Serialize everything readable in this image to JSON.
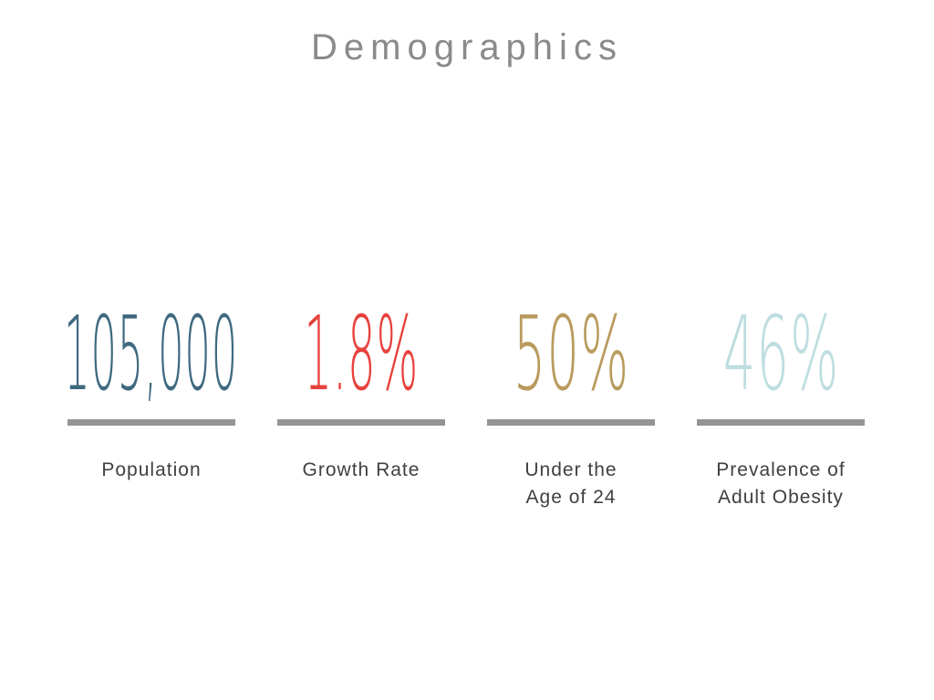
{
  "title": "Demographics",
  "divider_color": "#949494",
  "title_color": "#8a8a8a",
  "label_color": "#404040",
  "stats": [
    {
      "value": "105,000",
      "label": "Population",
      "color": "#3f6a80"
    },
    {
      "value": "1.8%",
      "label": "Growth Rate",
      "color": "#e8423d"
    },
    {
      "value": "50%",
      "label": "Under the\nAge of 24",
      "color": "#b99b5e"
    },
    {
      "value": "46%",
      "label": "Prevalence of\nAdult Obesity",
      "color": "#bedde1"
    }
  ],
  "chart_data": {
    "type": "table",
    "title": "Demographics",
    "categories": [
      "Population",
      "Growth Rate",
      "Under the Age of 24",
      "Prevalence of Adult Obesity"
    ],
    "values": [
      "105,000",
      "1.8%",
      "50%",
      "46%"
    ],
    "numeric_values": [
      105000,
      1.8,
      50,
      46
    ],
    "colors": [
      "#3f6a80",
      "#e8423d",
      "#b99b5e",
      "#bedde1"
    ],
    "legend_position": "none",
    "grid": false
  }
}
